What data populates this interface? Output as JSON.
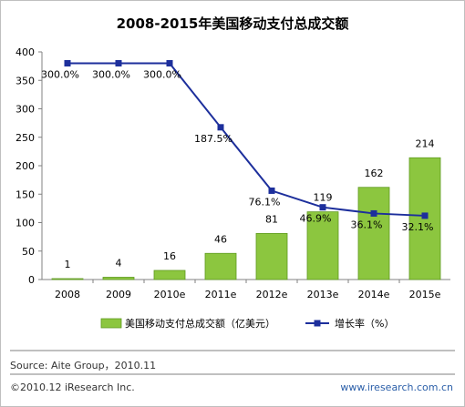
{
  "title": "2008-2015年美国移动支付总成交额",
  "source": "Source: Aite Group，2010.11",
  "copyright": "©2010.12 iResearch Inc.",
  "website": "www.iresearch.com.cn",
  "colors": {
    "bar": "#8cc63f",
    "bar_dark": "#5e9a1e",
    "line": "#1d2f9c",
    "axis": "#808080",
    "grid": "#d9d9d9"
  },
  "chart_data": {
    "type": "bar",
    "title": "2008-2015年美国移动支付总成交额",
    "categories": [
      "2008",
      "2009",
      "2010e",
      "2011e",
      "2012e",
      "2013e",
      "2014e",
      "2015e"
    ],
    "ylim": [
      0,
      400
    ],
    "yticks": [
      0,
      50,
      100,
      150,
      200,
      250,
      300,
      350,
      400
    ],
    "grid": false,
    "legend_position": "bottom",
    "series": [
      {
        "name": "美国移动支付总成交额（亿美元）",
        "type": "bar",
        "values": [
          1,
          4,
          16,
          46,
          81,
          119,
          162,
          214
        ],
        "labels": [
          "1",
          "4",
          "16",
          "46",
          "81",
          "119",
          "162",
          "214"
        ]
      },
      {
        "name": "增长率（%）",
        "type": "line",
        "values": [
          300.0,
          300.0,
          300.0,
          187.5,
          76.1,
          46.9,
          36.1,
          32.1
        ],
        "labels": [
          "300.0%",
          "300.0%",
          "300.0%",
          "187.5%",
          "76.1%",
          "46.9%",
          "36.1%",
          "32.1%"
        ]
      }
    ]
  }
}
